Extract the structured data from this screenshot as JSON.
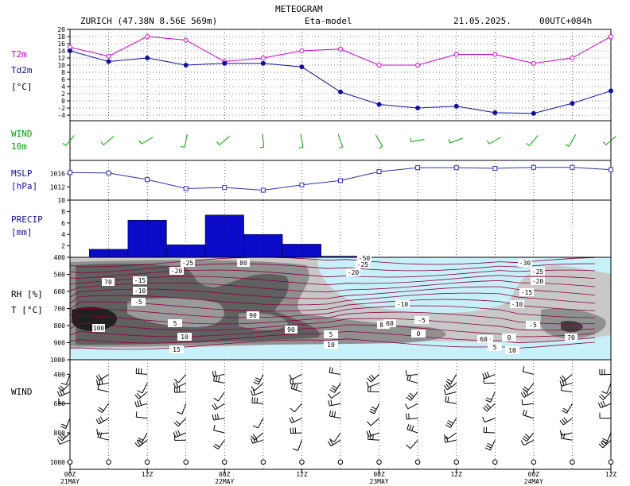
{
  "header": {
    "title": "METEOGRAM",
    "station": "ZURICH (47.38N 8.56E  569m)",
    "model": "Eta-model",
    "date": "21.05.2025.",
    "run": "00UTC+084h"
  },
  "time_axis": {
    "labels": [
      {
        "hour": 0,
        "tick": "00Z",
        "day": "21MAY"
      },
      {
        "hour": 12,
        "tick": "12Z",
        "day": ""
      },
      {
        "hour": 24,
        "tick": "00Z",
        "day": "22MAY"
      },
      {
        "hour": 36,
        "tick": "12Z",
        "day": ""
      },
      {
        "hour": 48,
        "tick": "00Z",
        "day": "23MAY"
      },
      {
        "hour": 60,
        "tick": "12Z",
        "day": ""
      },
      {
        "hour": 72,
        "tick": "00Z",
        "day": "24MAY"
      },
      {
        "hour": 84,
        "tick": "12Z",
        "day": ""
      }
    ]
  },
  "panel_labels": {
    "temp": [
      "T2m",
      "Td2m",
      "[°C]"
    ],
    "wind": [
      "WIND",
      "10m"
    ],
    "mslp": [
      "MSLP",
      "[hPa]"
    ],
    "precip": [
      "PRECIP",
      "[mm]"
    ],
    "section": [
      "RH [%]",
      "T [°C]"
    ],
    "wind_profile": [
      "WIND"
    ]
  },
  "colors": {
    "t2m": "#d000d0",
    "td2m": "#1010a0",
    "wind10m": "#00a000",
    "mslp": "#3030b0",
    "precip": "#0a0ac8",
    "temp_contour": "#8a0040",
    "rh_light": "#c8f0f8",
    "rh_mid": "#c8c8c8",
    "rh_dark1": "#909090",
    "rh_dark2": "#606060",
    "rh_dark3": "#202020"
  },
  "chart_data": [
    {
      "type": "line",
      "title": "T2m / Td2m",
      "ylabel": "[°C]",
      "ylim": [
        -4,
        20
      ],
      "yticks": [
        -4,
        -2,
        0,
        2,
        4,
        6,
        8,
        10,
        12,
        14,
        16,
        18,
        20
      ],
      "x": [
        0,
        6,
        12,
        18,
        24,
        30,
        36,
        42,
        48,
        54,
        60,
        66,
        72,
        78,
        84
      ],
      "series": [
        {
          "name": "T2m",
          "values": [
            15,
            12.5,
            18,
            17,
            11,
            12,
            14,
            14.5,
            10,
            10,
            13,
            13,
            10.5,
            12,
            18
          ]
        },
        {
          "name": "Td2m",
          "values": [
            14,
            11,
            12,
            10,
            10.5,
            10.5,
            9.5,
            2.5,
            -1,
            -2,
            -1.5,
            -3.3,
            -3.5,
            -0.7,
            2.8
          ]
        }
      ]
    },
    {
      "type": "barbs",
      "title": "WIND 10m",
      "x": [
        0,
        6,
        12,
        18,
        24,
        30,
        36,
        42,
        48,
        54,
        60,
        66,
        72,
        78,
        84
      ],
      "direction_deg": [
        220,
        230,
        240,
        190,
        230,
        175,
        170,
        160,
        150,
        260,
        250,
        240,
        220,
        210,
        230
      ],
      "speed_kt": [
        5,
        5,
        5,
        5,
        5,
        5,
        5,
        5,
        5,
        5,
        5,
        5,
        5,
        5,
        5
      ]
    },
    {
      "type": "line",
      "title": "MSLP",
      "ylabel": "[hPa]",
      "ylim": [
        1008,
        1020
      ],
      "yticks": [
        1012,
        1016
      ],
      "x": [
        0,
        6,
        12,
        18,
        24,
        30,
        36,
        42,
        48,
        54,
        60,
        66,
        72,
        78,
        84
      ],
      "series": [
        {
          "name": "MSLP",
          "values": [
            1016.3,
            1016.2,
            1014.2,
            1011.5,
            1011.8,
            1011.0,
            1012.6,
            1013.9,
            1016.6,
            1017.8,
            1017.8,
            1017.6,
            1017.9,
            1017.9,
            1017.2
          ]
        }
      ]
    },
    {
      "type": "bar",
      "title": "PRECIP",
      "ylabel": "[mm]",
      "ylim": [
        0,
        10
      ],
      "yticks": [
        2,
        4,
        6,
        8,
        10
      ],
      "bins": [
        [
          3,
          9
        ],
        [
          9,
          15
        ],
        [
          15,
          21
        ],
        [
          21,
          27
        ],
        [
          27,
          33
        ],
        [
          33,
          39
        ],
        [
          39,
          45
        ]
      ],
      "values": [
        1.4,
        6.5,
        2.2,
        7.4,
        4.0,
        2.3,
        0.2
      ]
    },
    {
      "type": "heatmap",
      "title": "RH / T cross-section",
      "ylabel_left": [
        "RH [%]",
        "T [°C]"
      ],
      "yticks": [
        400,
        500,
        600,
        700,
        800,
        900,
        1000
      ],
      "rh_labels": [
        "70",
        "80",
        "90",
        "100",
        "80",
        "60",
        "60",
        "70",
        "60",
        "90"
      ],
      "t_labels": [
        "-25",
        "-20",
        "-15",
        "-10",
        "-5",
        "5",
        "10",
        "15",
        "-30",
        "-25",
        "-20",
        "-15",
        "-10",
        "-5",
        "0",
        "5",
        "10",
        "-50",
        "-25",
        "-20",
        "-10",
        "-5",
        "0",
        "5",
        "10"
      ]
    },
    {
      "type": "barbs",
      "title": "WIND profile",
      "yticks": [
        400,
        600,
        800,
        1000
      ],
      "x": [
        0,
        6,
        12,
        18,
        24,
        30,
        36,
        42,
        48,
        54,
        60,
        66,
        72,
        78,
        84
      ]
    }
  ]
}
